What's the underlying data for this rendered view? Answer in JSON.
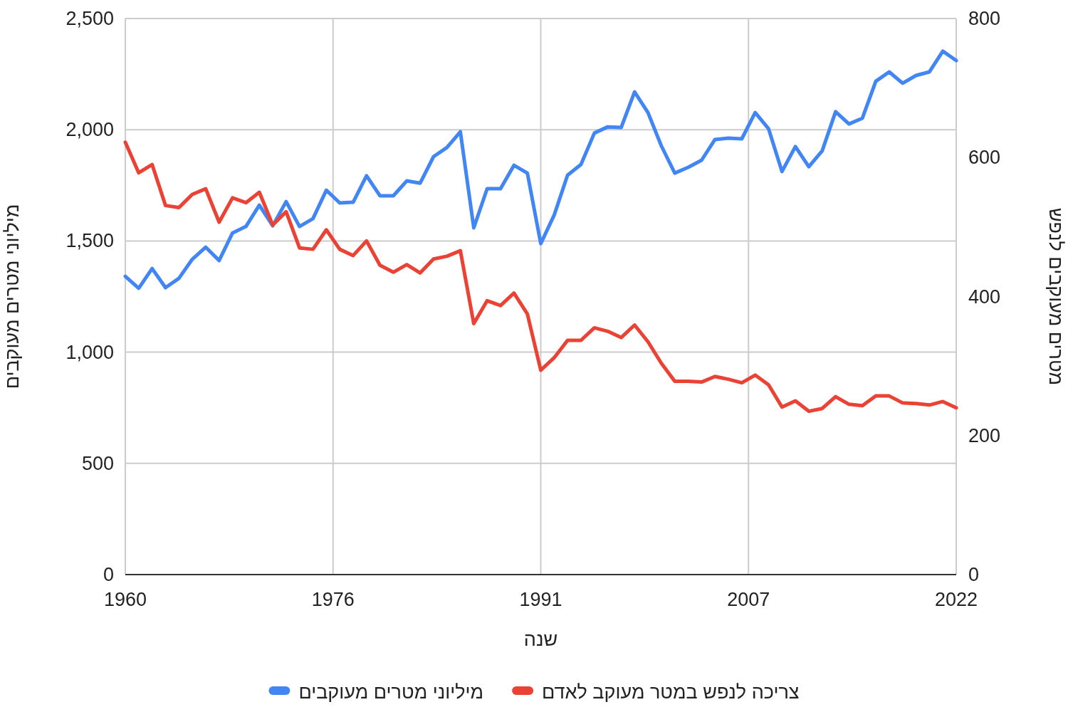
{
  "chart_data": {
    "type": "line",
    "xlabel": "שנה",
    "ylabel": "מיליוני מטרים מעוקבים",
    "y2label": "מטרים מעוקבים לנפש",
    "x": [
      1960,
      1961,
      1962,
      1963,
      1964,
      1965,
      1966,
      1967,
      1968,
      1969,
      1970,
      1971,
      1972,
      1973,
      1974,
      1975,
      1976,
      1977,
      1978,
      1979,
      1980,
      1981,
      1982,
      1983,
      1984,
      1985,
      1986,
      1987,
      1988,
      1989,
      1990,
      1991,
      1992,
      1993,
      1994,
      1995,
      1996,
      1997,
      1998,
      1999,
      2000,
      2001,
      2002,
      2003,
      2004,
      2005,
      2006,
      2007,
      2008,
      2009,
      2010,
      2011,
      2012,
      2013,
      2014,
      2015,
      2016,
      2017,
      2018,
      2019,
      2020,
      2021,
      2022
    ],
    "series": [
      {
        "name": "מיליוני מטרים מעוקבים",
        "color": "#4285f4",
        "values": [
          1341,
          1287,
          1376,
          1290,
          1332,
          1418,
          1472,
          1412,
          1536,
          1565,
          1661,
          1568,
          1677,
          1565,
          1600,
          1728,
          1671,
          1674,
          1793,
          1703,
          1703,
          1770,
          1760,
          1879,
          1920,
          1991,
          1559,
          1735,
          1735,
          1840,
          1805,
          1488,
          1616,
          1796,
          1844,
          1985,
          2013,
          2010,
          2170,
          2077,
          1927,
          1805,
          1831,
          1863,
          1956,
          1962,
          1959,
          2077,
          2004,
          1812,
          1924,
          1834,
          1905,
          2081,
          2026,
          2052,
          2218,
          2260,
          2209,
          2244,
          2260,
          2353,
          2311
        ]
      },
      {
        "name": "צריכה לנפש במטר מעוקב לאדם",
        "color": "#ea4335",
        "axis": "y2",
        "values": [
          622,
          578,
          590,
          531,
          528,
          547,
          555,
          507,
          542,
          535,
          550,
          503,
          522,
          470,
          468,
          496,
          468,
          459,
          480,
          445,
          435,
          446,
          434,
          454,
          458,
          466,
          361,
          394,
          387,
          405,
          375,
          294,
          312,
          337,
          337,
          355,
          350,
          341,
          359,
          335,
          304,
          278,
          278,
          277,
          285,
          281,
          276,
          287,
          273,
          241,
          250,
          235,
          239,
          256,
          245,
          243,
          257,
          257,
          247,
          246,
          244,
          249,
          240
        ]
      }
    ],
    "xlim": [
      1960,
      2022
    ],
    "xticks": [
      1960,
      {
        "value": 1975.5,
        "label": "1976"
      },
      1991,
      {
        "value": 2006.5,
        "label": "2007"
      },
      2022
    ],
    "ylim": [
      0,
      2500
    ],
    "yticks": [
      0,
      500,
      {
        "value": 1000,
        "label": "1,000"
      },
      {
        "value": 1500,
        "label": "1,500"
      },
      {
        "value": 2000,
        "label": "2,000"
      },
      {
        "value": 2500,
        "label": "2,500"
      }
    ],
    "y2lim": [
      0,
      800
    ],
    "y2ticks": [
      0,
      200,
      400,
      600,
      800
    ],
    "grid": true,
    "legend": "bottom"
  }
}
